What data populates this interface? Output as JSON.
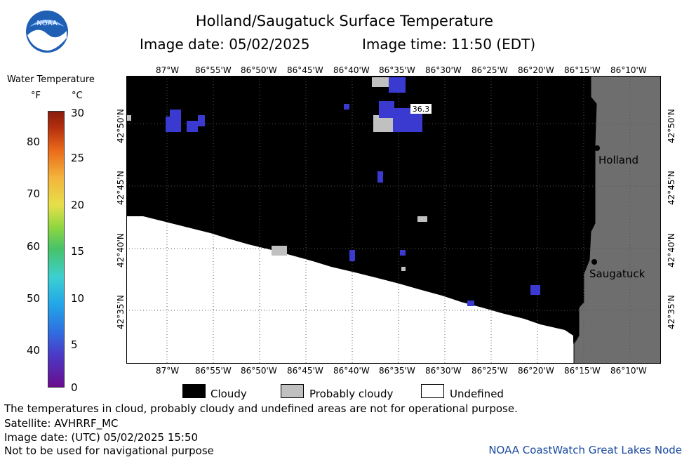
{
  "header": {
    "title": "Holland/Saugatuck Surface Temperature",
    "image_date": "Image date: 05/02/2025",
    "image_time": "Image time: 11:50 (EDT)"
  },
  "logo": {
    "text": "NOAA"
  },
  "colorbar": {
    "title": "Water Temperature",
    "unit_f": "°F",
    "unit_c": "°C",
    "f_ticks": [
      "80",
      "70",
      "60",
      "50",
      "40"
    ],
    "c_ticks": [
      "30",
      "25",
      "20",
      "15",
      "10",
      "5",
      "0"
    ]
  },
  "map": {
    "lon_labels": [
      "87°W",
      "86°55'W",
      "86°50'W",
      "86°45'W",
      "86°40'W",
      "86°35'W",
      "86°30'W",
      "86°25'W",
      "86°20'W",
      "86°15'W",
      "86°10'W"
    ],
    "lat_labels": [
      "42°50'N",
      "42°45'N",
      "42°40'N",
      "42°35'N"
    ],
    "places": {
      "holland": "Holland",
      "saugatuck": "Saugatuck"
    },
    "value_label": "36.3",
    "colors": {
      "cloud": "#000000",
      "probably_cloudy": "#c0c0c0",
      "undefined": "#ffffff",
      "land": "#6e6e6e",
      "water_cold": "#3a3ad0"
    }
  },
  "legend": {
    "cloudy": "Cloudy",
    "probably_cloudy": "Probably cloudy",
    "undefined": "Undefined"
  },
  "footer": {
    "line1": "The temperatures in cloud, probably cloudy and undefined areas are not for operational purpose.",
    "line2": "Satellite: AVHRRF_MC",
    "line3": "Image date: (UTC) 05/02/2025  15:50",
    "line4": "Not to be used for navigational purpose",
    "node": "NOAA CoastWatch Great Lakes Node"
  }
}
